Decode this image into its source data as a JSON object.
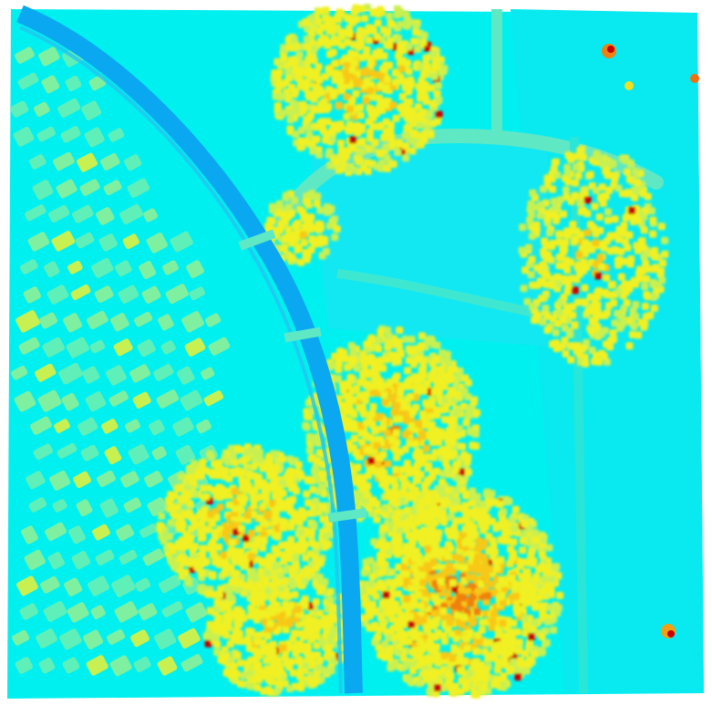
{
  "map": {
    "kind": "height-raster",
    "colormap": "jet",
    "background": "#ffffff",
    "palette": {
      "ground": "#00f0f0",
      "ground_low": "#08e6f0",
      "water_channel": "#0aa8f0",
      "low_vegetation": "#5ef0b8",
      "mid_vegetation": "#c8f050",
      "canopy": "#f0f020",
      "tall_canopy": "#f8c818",
      "very_tall": "#f08010",
      "peak": "#c80000"
    }
  }
}
